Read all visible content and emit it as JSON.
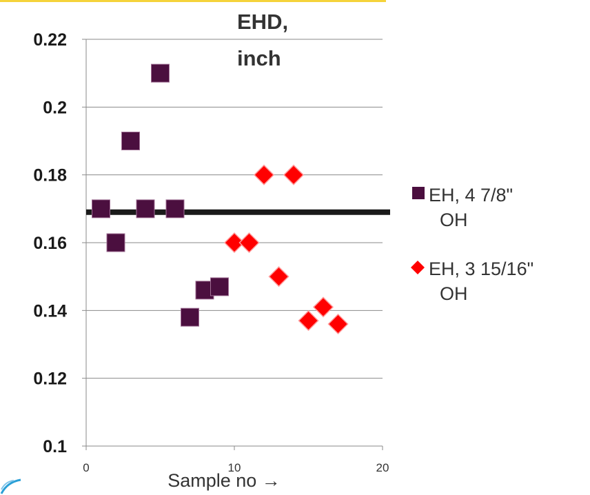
{
  "chart_data": {
    "type": "scatter",
    "title_lines": [
      "EHD,",
      "inch"
    ],
    "xlabel": "Sample no →",
    "ylabel": "",
    "xlim": [
      0,
      20
    ],
    "ylim": [
      0.1,
      0.22
    ],
    "x_ticks": [
      "0",
      "10",
      "20"
    ],
    "y_ticks": [
      "0.1",
      "0.12",
      "0.14",
      "0.16",
      "0.18",
      "0.2",
      "0.22"
    ],
    "grid": "horizontal",
    "legend_position": "right",
    "reference_line": {
      "y": 0.169,
      "color": "#1a1a1a"
    },
    "series": [
      {
        "name": "EH, 4 7/8\" OH",
        "name_lines": [
          "EH, 4 7/8\"",
          "OH"
        ],
        "marker": "square",
        "color": "#4b0f3f",
        "x": [
          1,
          2,
          3,
          4,
          5,
          6,
          7,
          8,
          9
        ],
        "y": [
          0.17,
          0.16,
          0.19,
          0.17,
          0.21,
          0.17,
          0.138,
          0.146,
          0.147
        ]
      },
      {
        "name": "EH, 3 15/16\" OH",
        "name_lines": [
          "EH, 3 15/16\"",
          "OH"
        ],
        "marker": "diamond",
        "color": "#ff0000",
        "x": [
          10,
          11,
          12,
          13,
          14,
          15,
          16,
          17
        ],
        "y": [
          0.16,
          0.16,
          0.18,
          0.15,
          0.18,
          0.137,
          0.141,
          0.136
        ]
      }
    ]
  }
}
